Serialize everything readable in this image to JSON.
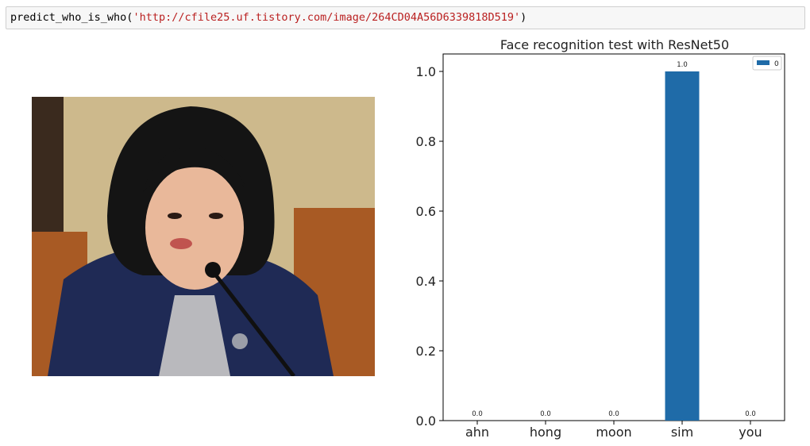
{
  "code_cell": {
    "func": "predict_who_is_who(",
    "arg": "'http://cfile25.uf.tistory.com/image/264CD04A56D6339818D519'",
    "close": ")"
  },
  "photo": {
    "colors": {
      "wall": "#cdb98c",
      "chair": "#a85a24",
      "jacket": "#1f2a55",
      "hair": "#141414",
      "skin": "#e9b89a",
      "microphone": "#101010"
    }
  },
  "chart_data": {
    "type": "bar",
    "title": "Face recognition test with ResNet50",
    "categories": [
      "ahn",
      "hong",
      "moon",
      "sim",
      "you"
    ],
    "series": [
      {
        "name": "0",
        "values": [
          0.0,
          0.0,
          0.0,
          1.0,
          0.0
        ],
        "color": "#1f6ba8"
      }
    ],
    "data_labels": [
      "0.0",
      "0.0",
      "0.0",
      "1.0",
      "0.0"
    ],
    "ylim": [
      0.0,
      1.05
    ],
    "yticks": [
      "0.0",
      "0.2",
      "0.4",
      "0.6",
      "0.8",
      "1.0"
    ],
    "legend_position": "top-right",
    "grid": false,
    "xlabel": "",
    "ylabel": ""
  }
}
